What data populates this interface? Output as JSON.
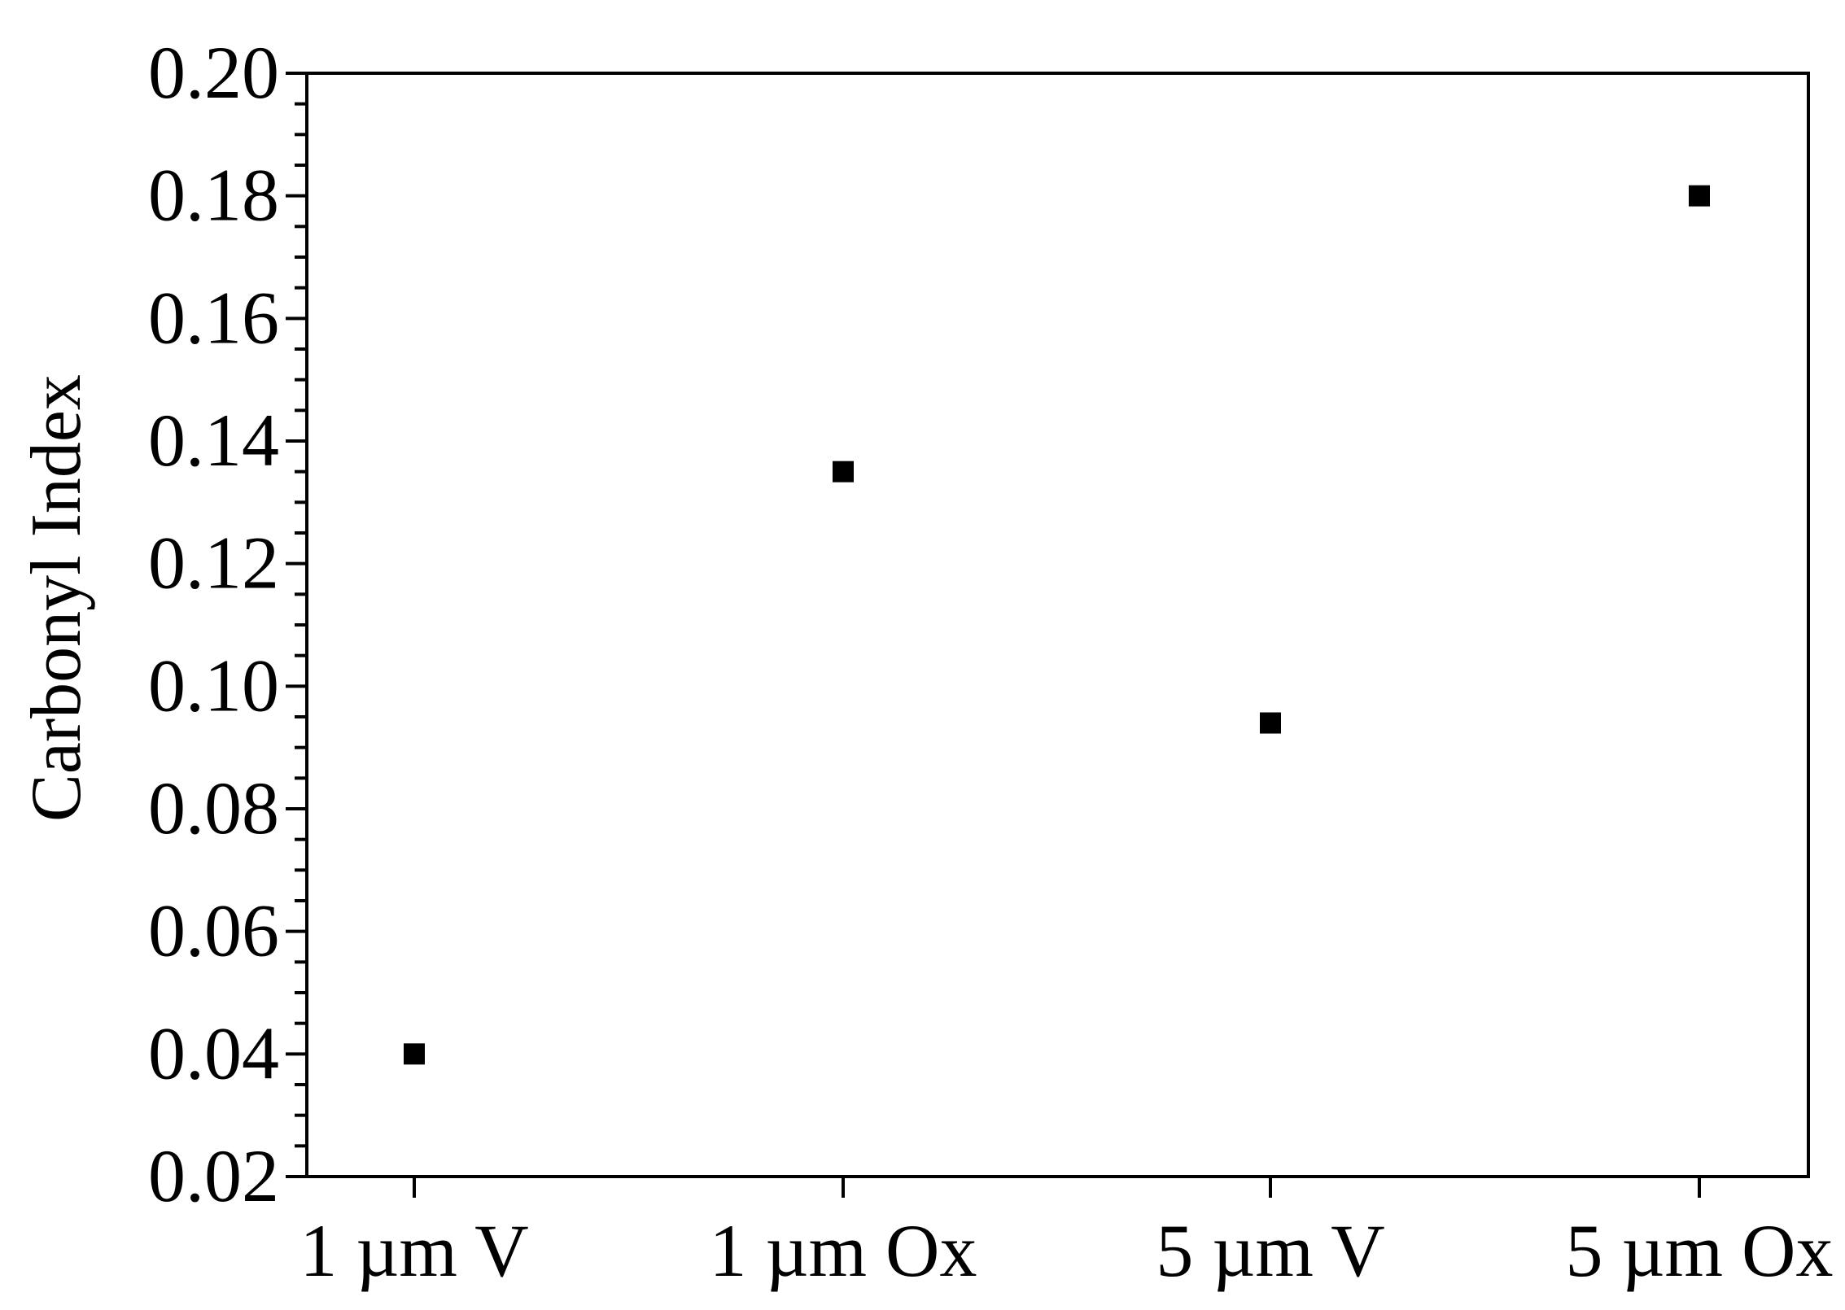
{
  "chart_data": {
    "type": "scatter",
    "title": "",
    "xlabel": "",
    "ylabel": "Carbonyl Index",
    "categories": [
      "1 µm V",
      "1 µm Ox",
      "5 µm V",
      "5 µm Ox"
    ],
    "values": [
      0.04,
      0.135,
      0.094,
      0.18
    ],
    "ylim": [
      0.02,
      0.2
    ],
    "yticks": [
      "0.02",
      "0.04",
      "0.06",
      "0.08",
      "0.10",
      "0.12",
      "0.14",
      "0.16",
      "0.18",
      "0.20"
    ],
    "y_minor_step": 0.005,
    "marker": "square",
    "marker_color": "#000000",
    "grid": false,
    "legend": "none"
  }
}
